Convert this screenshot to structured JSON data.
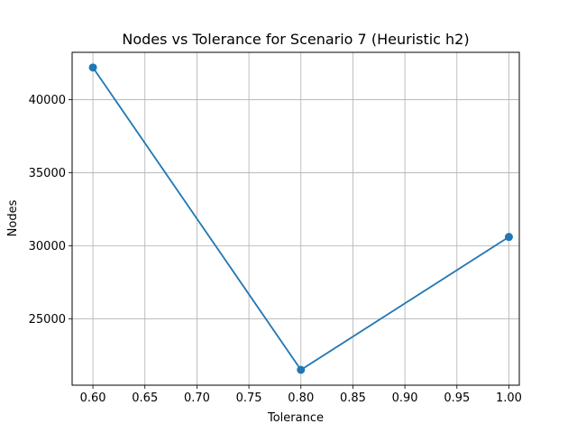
{
  "chart_data": {
    "type": "line",
    "title": "Nodes vs Tolerance for Scenario 7 (Heuristic h2)",
    "xlabel": "Tolerance",
    "ylabel": "Nodes",
    "x": [
      0.6,
      0.8,
      1.0
    ],
    "series": [
      {
        "values": [
          42200,
          21500,
          30600
        ],
        "color": "#1f77b4",
        "marker": "circle"
      }
    ],
    "xlim": [
      0.58,
      1.01
    ],
    "ylim": [
      20450,
      43240
    ],
    "xticks": [
      "0.60",
      "0.65",
      "0.70",
      "0.75",
      "0.80",
      "0.85",
      "0.90",
      "0.95",
      "1.00"
    ],
    "xtick_values": [
      0.6,
      0.65,
      0.7,
      0.75,
      0.8,
      0.85,
      0.9,
      0.95,
      1.0
    ],
    "yticks": [
      "25000",
      "30000",
      "35000",
      "40000"
    ],
    "ytick_values": [
      25000,
      30000,
      35000,
      40000
    ],
    "grid": true
  }
}
